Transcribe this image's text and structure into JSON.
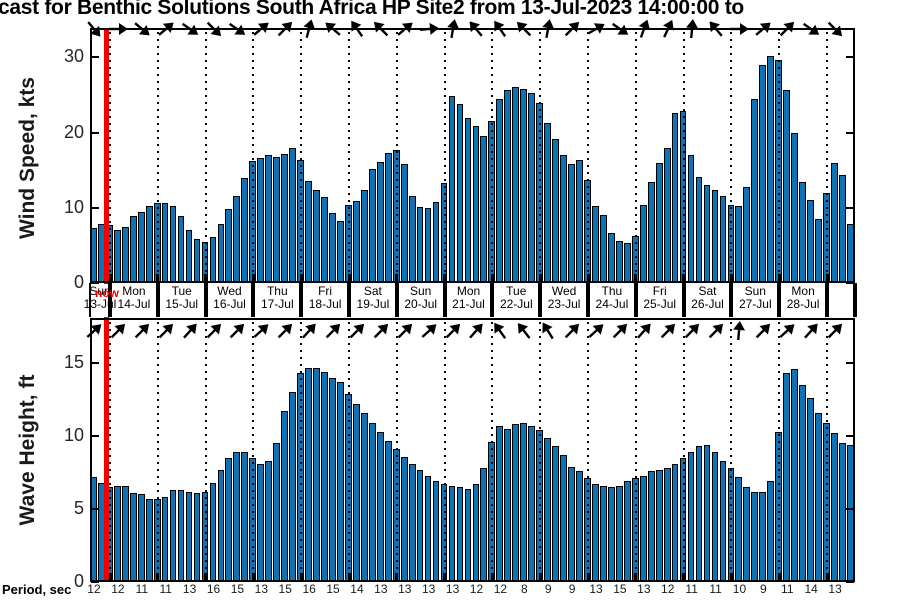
{
  "title": "cast for Benthic Solutions South Africa HP Site2 from 13-Jul-2023 14:00:00 to",
  "now_label": "now",
  "days": [
    {
      "name": "Sun",
      "date": "13-Jul"
    },
    {
      "name": "Mon",
      "date": "14-Jul"
    },
    {
      "name": "Tue",
      "date": "15-Jul"
    },
    {
      "name": "Wed",
      "date": "16-Jul"
    },
    {
      "name": "Thu",
      "date": "17-Jul"
    },
    {
      "name": "Fri",
      "date": "18-Jul"
    },
    {
      "name": "Sat",
      "date": "19-Jul"
    },
    {
      "name": "Sun",
      "date": "20-Jul"
    },
    {
      "name": "Mon",
      "date": "21-Jul"
    },
    {
      "name": "Tue",
      "date": "22-Jul"
    },
    {
      "name": "Wed",
      "date": "23-Jul"
    },
    {
      "name": "Thu",
      "date": "24-Jul"
    },
    {
      "name": "Fri",
      "date": "25-Jul"
    },
    {
      "name": "Sat",
      "date": "26-Jul"
    },
    {
      "name": "Sun",
      "date": "27-Jul"
    },
    {
      "name": "Mon",
      "date": "28-Jul"
    }
  ],
  "period": {
    "label": "Period, sec",
    "values": [
      12,
      12,
      11,
      11,
      13,
      16,
      15,
      13,
      15,
      16,
      15,
      14,
      13,
      13,
      13,
      13,
      12,
      12,
      8,
      9,
      9,
      13,
      15,
      13,
      12,
      11,
      11,
      10,
      9,
      11,
      14,
      13
    ]
  },
  "colors": {
    "bar": "#0e72b5",
    "bar_edge": "#000000",
    "now_line": "#f20000",
    "tick_label": "#262626"
  },
  "chart_data": [
    {
      "type": "bar",
      "ylabel": "Wind Speed, kts",
      "yticks": [
        0,
        10,
        20,
        30
      ],
      "ylim": [
        0,
        33.9
      ],
      "grid": "vertical dotted at each day boundary",
      "values": [
        7.3,
        7.9,
        7.7,
        7.1,
        7.4,
        8.9,
        9.4,
        10.2,
        10.6,
        10.7,
        10.3,
        8.9,
        7.0,
        5.9,
        5.4,
        6.1,
        7.9,
        9.8,
        11.6,
        13.9,
        16.2,
        16.6,
        17.0,
        16.8,
        17.2,
        17.9,
        16.3,
        13.6,
        12.4,
        11.4,
        9.3,
        8.3,
        10.4,
        10.9,
        12.3,
        15.2,
        16.1,
        17.3,
        17.7,
        15.8,
        11.6,
        10.1,
        10.0,
        10.8,
        13.3,
        24.8,
        23.8,
        22.0,
        20.9,
        19.6,
        21.5,
        24.4,
        25.7,
        26.1,
        25.8,
        25.2,
        23.9,
        21.3,
        19.2,
        17.0,
        15.8,
        16.4,
        13.7,
        10.3,
        9.0,
        6.6,
        5.6,
        5.3,
        6.2,
        10.4,
        13.4,
        16.0,
        18.0,
        22.6,
        22.9,
        17.0,
        14.1,
        13.0,
        12.4,
        11.5,
        10.4,
        10.3,
        12.7,
        24.5,
        29.0,
        30.2,
        29.6,
        25.7,
        19.9,
        13.4,
        11.0,
        8.5,
        12.0,
        15.9,
        14.3,
        7.9
      ],
      "arrow_angles_deg": [
        -50,
        0,
        -40,
        40,
        -35,
        -45,
        -35,
        40,
        45,
        75,
        140,
        125,
        135,
        40,
        5,
        80,
        130,
        125,
        135,
        80,
        45,
        30,
        -35,
        70,
        65,
        85,
        130,
        0,
        40,
        45,
        -35,
        -45
      ]
    },
    {
      "type": "bar",
      "ylabel": "Wave Height, ft",
      "yticks": [
        0,
        5,
        10,
        15
      ],
      "ylim": [
        0,
        18.1
      ],
      "grid": "vertical dotted at each day boundary",
      "values": [
        7.2,
        6.8,
        6.5,
        6.6,
        6.6,
        6.1,
        6.0,
        5.7,
        5.7,
        5.8,
        6.3,
        6.3,
        6.2,
        6.1,
        6.2,
        6.8,
        7.7,
        8.5,
        8.9,
        8.9,
        8.5,
        8.1,
        8.3,
        9.5,
        11.7,
        13.0,
        14.3,
        14.7,
        14.7,
        14.4,
        14.0,
        13.7,
        12.9,
        12.2,
        11.6,
        10.9,
        10.3,
        9.7,
        9.1,
        8.6,
        8.1,
        7.7,
        7.3,
        6.9,
        6.7,
        6.6,
        6.5,
        6.4,
        6.7,
        7.8,
        9.6,
        10.7,
        10.5,
        10.8,
        10.9,
        10.7,
        10.4,
        9.9,
        9.3,
        8.7,
        7.9,
        7.6,
        7.1,
        6.7,
        6.6,
        6.5,
        6.6,
        6.9,
        7.1,
        7.3,
        7.6,
        7.7,
        7.8,
        8.1,
        8.5,
        8.9,
        9.3,
        9.4,
        8.9,
        8.3,
        7.8,
        7.2,
        6.5,
        6.2,
        6.2,
        6.9,
        10.3,
        14.3,
        14.6,
        13.5,
        12.6,
        11.6,
        10.9,
        10.2,
        9.5,
        9.4
      ],
      "arrow_angles_deg": [
        42,
        45,
        45,
        45,
        48,
        45,
        45,
        42,
        45,
        48,
        45,
        45,
        45,
        45,
        42,
        45,
        48,
        125,
        128,
        122,
        45,
        42,
        45,
        48,
        45,
        45,
        45,
        85,
        45,
        42,
        48,
        45
      ]
    }
  ]
}
